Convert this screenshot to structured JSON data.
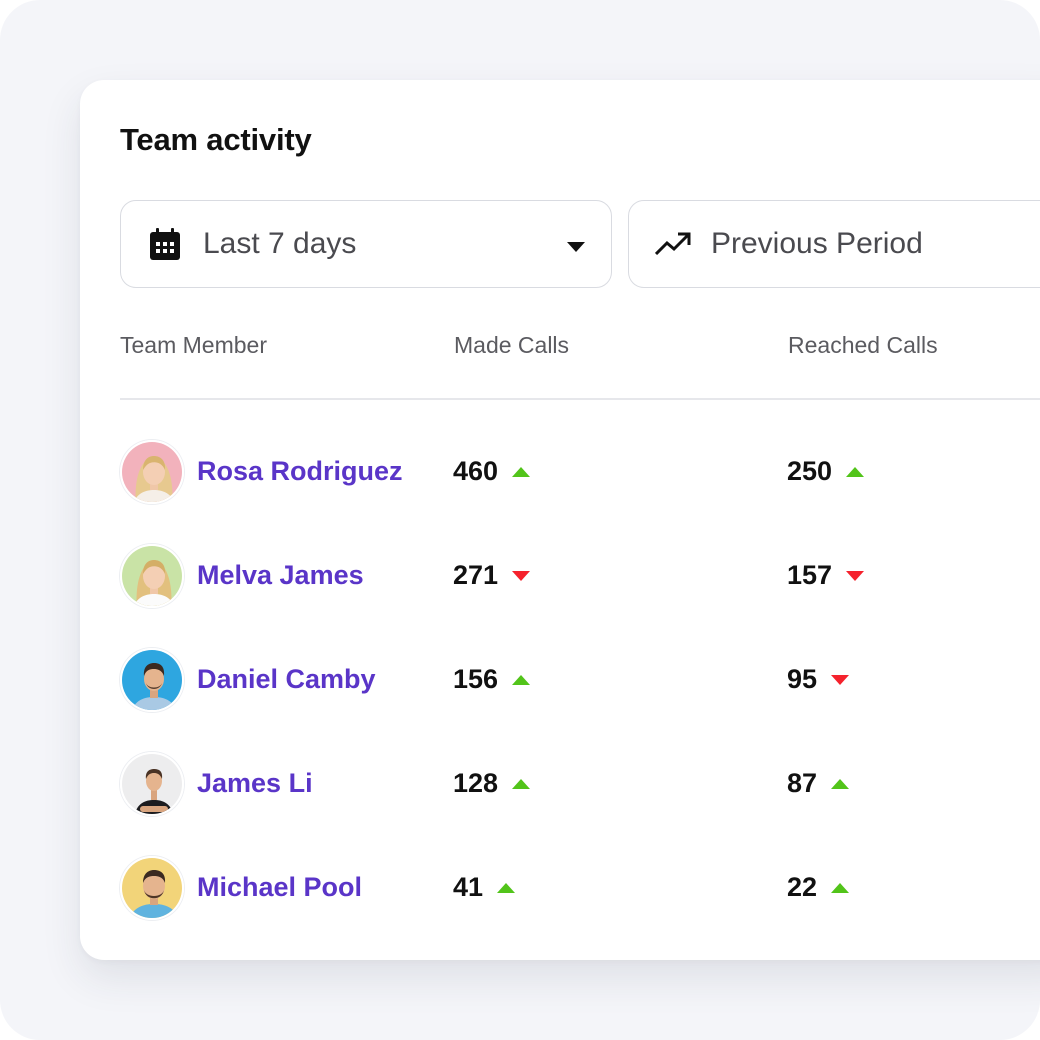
{
  "widget": {
    "title": "Team activity"
  },
  "filters": {
    "period": {
      "selected": "Last 7 days",
      "icon": "calendar-icon"
    },
    "comparison": {
      "selected": "Previous Period",
      "icon": "trending-up-icon"
    }
  },
  "table": {
    "columns": [
      "Team Member",
      "Made Calls",
      "Reached Calls"
    ],
    "rows": [
      {
        "name": "Rosa Rodriguez",
        "made_calls": "460",
        "made_trend": "up",
        "reached_calls": "250",
        "reached_trend": "up"
      },
      {
        "name": "Melva James",
        "made_calls": "271",
        "made_trend": "down",
        "reached_calls": "157",
        "reached_trend": "down"
      },
      {
        "name": "Daniel Camby",
        "made_calls": "156",
        "made_trend": "up",
        "reached_calls": "95",
        "reached_trend": "down"
      },
      {
        "name": "James Li",
        "made_calls": "128",
        "made_trend": "up",
        "reached_calls": "87",
        "reached_trend": "up"
      },
      {
        "name": "Michael Pool",
        "made_calls": "41",
        "made_trend": "up",
        "reached_calls": "22",
        "reached_trend": "up"
      }
    ]
  },
  "colors": {
    "name_accent": "#5a35c8",
    "trend_up": "#52c41a",
    "trend_down": "#f5222d"
  }
}
